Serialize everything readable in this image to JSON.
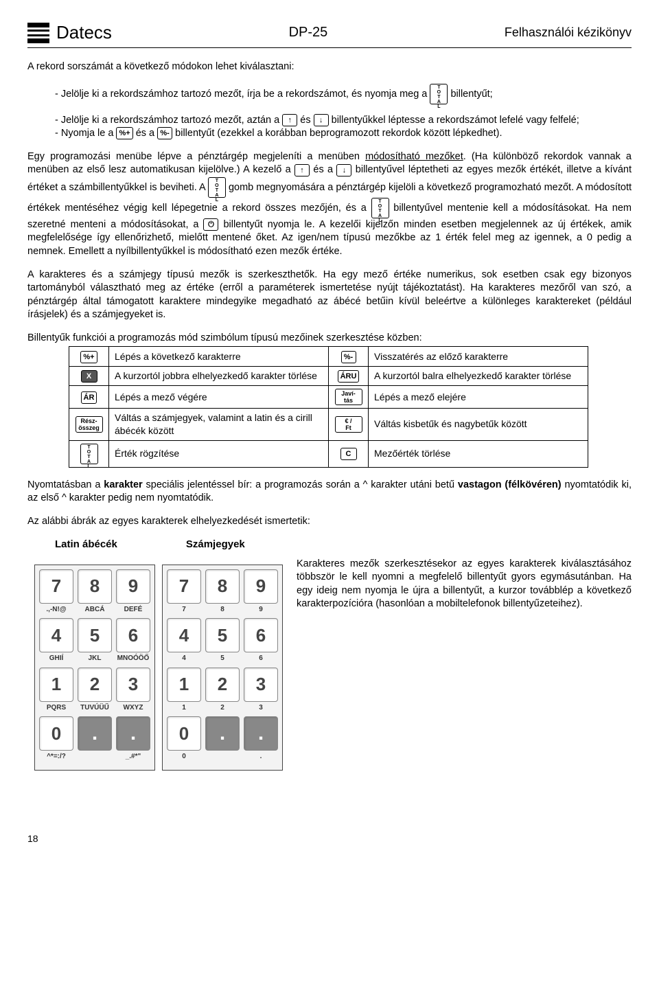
{
  "header": {
    "brand": "Datecs",
    "model": "DP-25",
    "manual": "Felhasználói kézikönyv"
  },
  "intro": "A rekord sorszámát a következő módokon lehet kiválasztani:",
  "bullets": {
    "b1a": "- Jelölje ki a rekordszámhoz tartozó mezőt, írja be a rekordszámot, és nyomja meg a ",
    "b1b": " billentyűt;",
    "b2a": "- Jelölje ki a rekordszámhoz tartozó mezőt, aztán a ",
    "b2b": " és ",
    "b2c": " billentyűkkel léptesse a rekordszámot lefelé vagy felfelé;",
    "b3a": "- Nyomja le a ",
    "b3b": " és a ",
    "b3c": " billentyűt (ezekkel a korábban beprogramozott rekordok között lépkedhet)."
  },
  "p2a": "Egy programozási menübe lépve a pénztárgép megjeleníti a menüben ",
  "p2u": "módosítható mezőket",
  "p2b": ". (Ha különböző rekordok vannak a menüben az első lesz automatikusan kijelölve.) A kezelő a ",
  "p2c": " és a ",
  "p2d": " billentyűvel léptetheti az egyes mezők értékét, illetve a kívánt értéket a számbillentyűkkel is beviheti. A ",
  "p2e": " gomb megnyomására a pénztárgép kijelöli a következő programozható mezőt. A módosított értékek mentéséhez végig kell lépegetnie a rekord összes mezőjén, és a ",
  "p2f": " billentyűvel mentenie kell a módosításokat. Ha nem szeretné menteni a módosításokat, a ",
  "p2g": " billentyűt nyomja le. A kezelői kijelzőn minden esetben megjelennek az új értékek, amik megfelelősége így ellenőrizhető, mielőtt mentené őket. Az igen/nem típusú mezőkbe az 1 érték felel meg az igennek, a 0 pedig a nemnek. Emellett a nyílbillentyűkkel is módosítható ezen mezők értéke.",
  "p3": "A karakteres és a számjegy típusú mezők is szerkeszthetők. Ha egy mező értéke numerikus, sok esetben csak egy bizonyos tartományból választható meg az értéke (erről a paraméterek ismertetése nyújt tájékoztatást). Ha karakteres mezőről van szó, a pénztárgép által támogatott karaktere mindegyike megadható az ábécé betűin kívül beleértve a különleges karaktereket (például írásjelek) és a számjegyeket is.",
  "p4": "Billentyűk funkciói a programozás mód szimbólum típusú mezőinek szerkesztése közben:",
  "table": {
    "r1k1": "%+",
    "r1d1": "Lépés a következő karakterre",
    "r1k2": "%-",
    "r1d2": "Visszatérés az előző karakterre",
    "r2k1": "X",
    "r2d1": "A kurzortól jobbra elhelyezkedő karakter törlése",
    "r2k2": "ÁRU",
    "r2d2": "A kurzortól balra elhelyezkedő karakter törlése",
    "r3k1": "ÁR",
    "r3d1": "Lépés a mező végére",
    "r3k2a": "Javí-",
    "r3k2b": "tás",
    "r3d2": "Lépés a mező elejére",
    "r4k1a": "Rész-",
    "r4k1b": "összeg",
    "r4d1": "Váltás a számjegyek, valamint a latin és a cirill ábécék között",
    "r4k2a": "€ /",
    "r4k2b": "Ft",
    "r4d2": "Váltás kisbetűk és nagybetűk között",
    "r5d1": "Érték rögzítése",
    "r5k2": "C",
    "r5d2": "Mezőérték törlése"
  },
  "p5a": "Nyomtatásban a ",
  "p5b": "karakter",
  "p5c": " speciális jelentéssel bír: a programozás során a ^ karakter utáni betű ",
  "p5d": "vastagon (félkövéren)",
  "p5e": " nyomtatódik ki, az első ^ karakter pedig nem nyomtatódik.",
  "p6": "Az alábbi ábrák az egyes karakterek elhelyezkedését ismertetik:",
  "kpheaders": {
    "latin": "Latin ábécék",
    "digits": "Számjegyek"
  },
  "keypad_latin": {
    "keys": [
      "7",
      "8",
      "9",
      "4",
      "5",
      "6",
      "1",
      "2",
      "3",
      "0"
    ],
    "subs": [
      ".,-N!@",
      "ABCÁ",
      "DEFÉ",
      "GHIÍ",
      "JKL",
      "MNOÓÖŐ",
      "PQRS",
      "TUVÚÜŰ",
      "WXYZ",
      "^*=:/?",
      "",
      "_.#*\""
    ]
  },
  "keypad_digits": {
    "keys": [
      "7",
      "8",
      "9",
      "4",
      "5",
      "6",
      "1",
      "2",
      "3",
      "0"
    ],
    "subs": [
      "7",
      "8",
      "9",
      "4",
      "5",
      "6",
      "1",
      "2",
      "3",
      "0",
      "",
      "."
    ]
  },
  "p7": "Karakteres mezők szerkesztésekor az egyes karakterek kiválasztásához többször le kell nyomni a megfelelő billentyűt gyors egymásutánban. Ha egy ideig nem nyomja le újra a billentyűt, a kurzor továbblép a következő karakterpozícióra (hasonlóan a mobiltelefonok billentyűzeteihez).",
  "keys": {
    "up": "↑",
    "down": "↓",
    "pctplus": "%+",
    "pctminus": "%-",
    "power": "⏻"
  },
  "page": "18"
}
